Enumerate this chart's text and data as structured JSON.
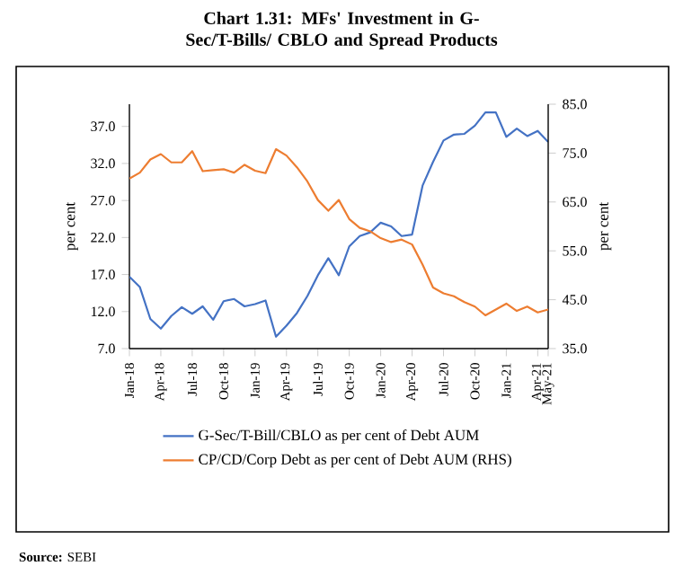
{
  "chart_data": {
    "type": "line",
    "title": "Chart 1.31: MFs' Investment in G-Sec/T-Bills/ CBLO and Spread Products",
    "categories": [
      "Jan-18",
      null,
      null,
      "Apr-18",
      null,
      null,
      "Jul-18",
      null,
      null,
      "Oct-18",
      null,
      null,
      "Jan-19",
      null,
      null,
      "Apr-19",
      null,
      null,
      "Jul-19",
      null,
      null,
      "Oct-19",
      null,
      null,
      "Jan-20",
      null,
      null,
      "Apr-20",
      null,
      null,
      "Jul-20",
      null,
      null,
      "Oct-20",
      null,
      null,
      "Jan-21",
      null,
      null,
      "Apr-21",
      "May-21"
    ],
    "series": [
      {
        "name": "G-Sec/T-Bill/CBLO as per cent of Debt AUM",
        "color": "#4472c4",
        "values": [
          16.7,
          15.3,
          11.0,
          9.7,
          11.4,
          12.6,
          11.7,
          12.7,
          10.9,
          13.4,
          13.7,
          12.7,
          13.0,
          13.5,
          8.6,
          10.1,
          11.8,
          14.1,
          16.9,
          19.2,
          16.9,
          20.8,
          22.2,
          22.7,
          24.0,
          23.5,
          22.2,
          22.4,
          29.0,
          32.2,
          35.1,
          35.9,
          36.0,
          37.1,
          38.9,
          38.9,
          35.6,
          36.7,
          35.7,
          36.4,
          34.9
        ]
      },
      {
        "name": "CP/CD/Corp Debt as per cent of Debt AUM (RHS)",
        "color": "#ed7d31",
        "axis": "y2",
        "values": [
          69.8,
          71.0,
          73.7,
          74.8,
          73.1,
          73.1,
          75.4,
          71.3,
          71.5,
          71.7,
          71.0,
          72.6,
          71.4,
          70.9,
          75.8,
          74.5,
          72.1,
          69.2,
          65.4,
          63.2,
          65.4,
          61.5,
          59.7,
          59.0,
          57.6,
          56.8,
          57.3,
          56.3,
          52.2,
          47.5,
          46.3,
          45.7,
          44.5,
          43.6,
          41.8,
          43.0,
          44.2,
          42.7,
          43.6,
          42.4,
          43.0
        ]
      }
    ],
    "ylabel": "per cent",
    "y2label": "per cent",
    "ylim": [
      7,
      40
    ],
    "yticks": [
      {
        "value": 7,
        "label": "7.0"
      },
      {
        "value": 12,
        "label": "12.0"
      },
      {
        "value": 17,
        "label": "17.0"
      },
      {
        "value": 22,
        "label": "22.0"
      },
      {
        "value": 27,
        "label": "27.0"
      },
      {
        "value": 32,
        "label": "32.0"
      },
      {
        "value": 37,
        "label": "37.0"
      }
    ],
    "y2lim": [
      35,
      85
    ],
    "y2ticks": [
      {
        "value": 35,
        "label": "35.0"
      },
      {
        "value": 45,
        "label": "45.0"
      },
      {
        "value": 55,
        "label": "55.0"
      },
      {
        "value": 65,
        "label": "65.0"
      },
      {
        "value": 75,
        "label": "75.0"
      },
      {
        "value": 85,
        "label": "85.0"
      }
    ],
    "legend": "bottom",
    "marker": "none",
    "line_style": "solid",
    "annotations": [
      "**Source:** SEBI"
    ]
  }
}
